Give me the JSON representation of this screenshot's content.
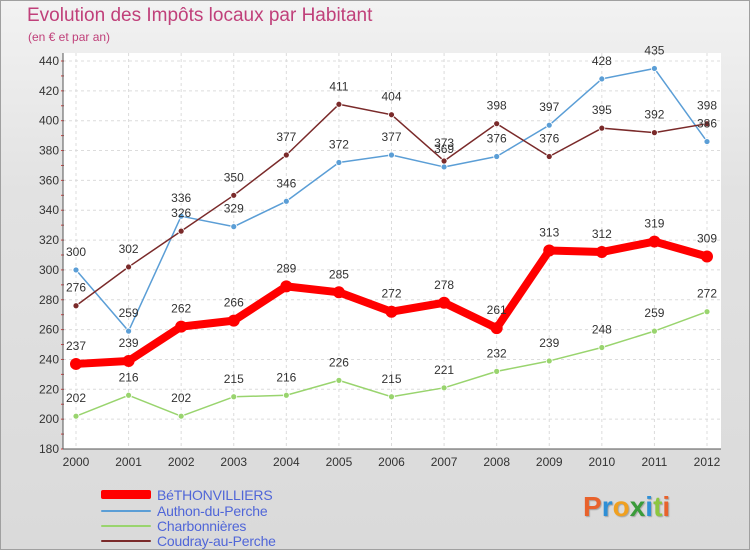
{
  "title": "Evolution des Impôts locaux par Habitant",
  "subtitle": "(en € et par an)",
  "logo": {
    "letters": [
      {
        "char": "P",
        "color": "#e8622c"
      },
      {
        "char": "r",
        "color": "#2f8fd6"
      },
      {
        "char": "o",
        "color": "#f0a020"
      },
      {
        "char": "x",
        "color": "#3a9c3a"
      },
      {
        "char": "i",
        "color": "#2f8fd6"
      },
      {
        "char": "t",
        "color": "#8cc63f"
      },
      {
        "char": "i",
        "color": "#e8622c"
      }
    ]
  },
  "chart_data": {
    "type": "line",
    "title": "Evolution des Impôts locaux par Habitant",
    "subtitle": "(en € et par an)",
    "xlabel": "",
    "ylabel": "",
    "x": [
      "2000",
      "2001",
      "2002",
      "2003",
      "2004",
      "2005",
      "2006",
      "2007",
      "2008",
      "2009",
      "2010",
      "2011",
      "2012"
    ],
    "ylim": [
      180,
      440
    ],
    "yticks": [
      180,
      200,
      220,
      240,
      260,
      280,
      300,
      320,
      340,
      360,
      380,
      400,
      420,
      440
    ],
    "grid": "horizontal",
    "legend": "bottom-left",
    "series": [
      {
        "name": "Charbonnières",
        "color": "#99d46e",
        "values": [
          202,
          216,
          202,
          215,
          216,
          226,
          215,
          221,
          232,
          239,
          248,
          259,
          272
        ]
      },
      {
        "name": "Authon-du-Perche",
        "color": "#5b9ed6",
        "values": [
          300,
          259,
          336,
          329,
          346,
          372,
          377,
          369,
          376,
          397,
          428,
          435,
          386
        ]
      },
      {
        "name": "Coudray-au-Perche",
        "color": "#7a2a2a",
        "values": [
          276,
          302,
          326,
          350,
          377,
          411,
          404,
          373,
          398,
          376,
          395,
          392,
          398
        ]
      },
      {
        "name": "BéTHONVILLIERS",
        "color": "#ff0000",
        "values": [
          237,
          239,
          262,
          266,
          289,
          285,
          272,
          278,
          261,
          313,
          312,
          319,
          309
        ]
      }
    ],
    "legend_order": [
      "BéTHONVILLIERS",
      "Authon-du-Perche",
      "Charbonnières",
      "Coudray-au-Perche"
    ]
  }
}
